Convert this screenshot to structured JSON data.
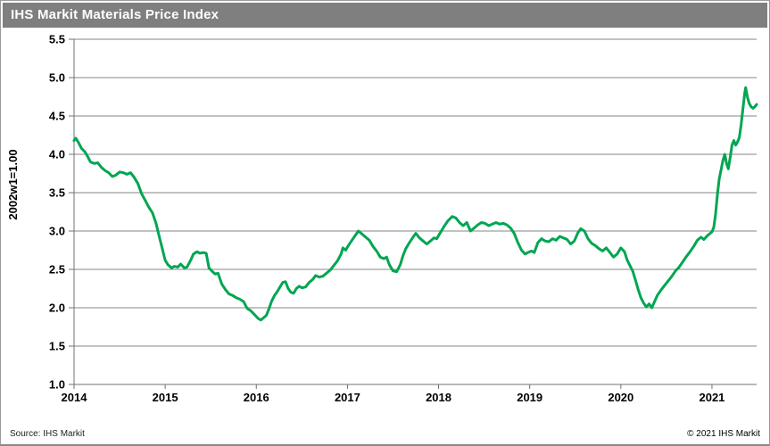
{
  "header": {
    "title": "IHS Markit Materials Price Index"
  },
  "footer": {
    "source": "Source: IHS Markit",
    "copyright": "© 2021  IHS Markit"
  },
  "colors": {
    "header_bg": "#7f7f7f",
    "line": "#00a651",
    "grid": "#858585",
    "axis": "#707070",
    "tick_text": "#000000"
  },
  "chart_data": {
    "type": "line",
    "title": "IHS Markit Materials Price Index",
    "xlabel": "",
    "ylabel": "2002w1=1.00",
    "ylim": [
      1.0,
      5.5
    ],
    "ytick_step": 0.5,
    "xlim": [
      2014,
      2021.49
    ],
    "xticks": [
      2014,
      2015,
      2016,
      2017,
      2018,
      2019,
      2020,
      2021
    ],
    "grid": "horizontal",
    "legend": "none",
    "series": [
      {
        "name": "Materials Price Index",
        "points": [
          [
            2014.0,
            4.18
          ],
          [
            2014.02,
            4.21
          ],
          [
            2014.05,
            4.15
          ],
          [
            2014.08,
            4.08
          ],
          [
            2014.12,
            4.03
          ],
          [
            2014.15,
            3.97
          ],
          [
            2014.18,
            3.9
          ],
          [
            2014.22,
            3.88
          ],
          [
            2014.26,
            3.89
          ],
          [
            2014.3,
            3.83
          ],
          [
            2014.34,
            3.79
          ],
          [
            2014.38,
            3.76
          ],
          [
            2014.42,
            3.71
          ],
          [
            2014.46,
            3.73
          ],
          [
            2014.5,
            3.77
          ],
          [
            2014.54,
            3.76
          ],
          [
            2014.58,
            3.74
          ],
          [
            2014.62,
            3.76
          ],
          [
            2014.66,
            3.7
          ],
          [
            2014.7,
            3.62
          ],
          [
            2014.74,
            3.49
          ],
          [
            2014.78,
            3.4
          ],
          [
            2014.82,
            3.31
          ],
          [
            2014.86,
            3.24
          ],
          [
            2014.9,
            3.1
          ],
          [
            2014.93,
            2.95
          ],
          [
            2014.97,
            2.76
          ],
          [
            2015.0,
            2.62
          ],
          [
            2015.03,
            2.56
          ],
          [
            2015.07,
            2.52
          ],
          [
            2015.1,
            2.54
          ],
          [
            2015.14,
            2.53
          ],
          [
            2015.17,
            2.57
          ],
          [
            2015.21,
            2.52
          ],
          [
            2015.24,
            2.53
          ],
          [
            2015.28,
            2.62
          ],
          [
            2015.31,
            2.7
          ],
          [
            2015.35,
            2.73
          ],
          [
            2015.38,
            2.71
          ],
          [
            2015.42,
            2.72
          ],
          [
            2015.45,
            2.71
          ],
          [
            2015.48,
            2.52
          ],
          [
            2015.52,
            2.47
          ],
          [
            2015.55,
            2.44
          ],
          [
            2015.58,
            2.45
          ],
          [
            2015.62,
            2.31
          ],
          [
            2015.66,
            2.24
          ],
          [
            2015.7,
            2.18
          ],
          [
            2015.74,
            2.16
          ],
          [
            2015.78,
            2.13
          ],
          [
            2015.82,
            2.11
          ],
          [
            2015.86,
            2.08
          ],
          [
            2015.9,
            1.99
          ],
          [
            2015.94,
            1.96
          ],
          [
            2015.98,
            1.91
          ],
          [
            2016.02,
            1.86
          ],
          [
            2016.05,
            1.84
          ],
          [
            2016.08,
            1.87
          ],
          [
            2016.11,
            1.9
          ],
          [
            2016.14,
            1.99
          ],
          [
            2016.17,
            2.09
          ],
          [
            2016.2,
            2.16
          ],
          [
            2016.23,
            2.21
          ],
          [
            2016.26,
            2.27
          ],
          [
            2016.29,
            2.33
          ],
          [
            2016.32,
            2.34
          ],
          [
            2016.35,
            2.25
          ],
          [
            2016.38,
            2.2
          ],
          [
            2016.41,
            2.19
          ],
          [
            2016.44,
            2.25
          ],
          [
            2016.47,
            2.28
          ],
          [
            2016.5,
            2.26
          ],
          [
            2016.54,
            2.27
          ],
          [
            2016.58,
            2.33
          ],
          [
            2016.62,
            2.37
          ],
          [
            2016.65,
            2.42
          ],
          [
            2016.69,
            2.4
          ],
          [
            2016.73,
            2.41
          ],
          [
            2016.77,
            2.45
          ],
          [
            2016.81,
            2.49
          ],
          [
            2016.85,
            2.55
          ],
          [
            2016.89,
            2.61
          ],
          [
            2016.93,
            2.7
          ],
          [
            2016.95,
            2.78
          ],
          [
            2016.98,
            2.75
          ],
          [
            2017.01,
            2.81
          ],
          [
            2017.05,
            2.88
          ],
          [
            2017.09,
            2.95
          ],
          [
            2017.12,
            3.0
          ],
          [
            2017.16,
            2.96
          ],
          [
            2017.2,
            2.92
          ],
          [
            2017.24,
            2.88
          ],
          [
            2017.28,
            2.8
          ],
          [
            2017.32,
            2.74
          ],
          [
            2017.36,
            2.66
          ],
          [
            2017.4,
            2.64
          ],
          [
            2017.43,
            2.66
          ],
          [
            2017.46,
            2.56
          ],
          [
            2017.5,
            2.48
          ],
          [
            2017.54,
            2.47
          ],
          [
            2017.58,
            2.56
          ],
          [
            2017.61,
            2.68
          ],
          [
            2017.64,
            2.77
          ],
          [
            2017.68,
            2.85
          ],
          [
            2017.72,
            2.92
          ],
          [
            2017.75,
            2.97
          ],
          [
            2017.79,
            2.91
          ],
          [
            2017.83,
            2.87
          ],
          [
            2017.87,
            2.83
          ],
          [
            2017.91,
            2.87
          ],
          [
            2017.95,
            2.91
          ],
          [
            2017.98,
            2.9
          ],
          [
            2018.02,
            2.98
          ],
          [
            2018.06,
            3.06
          ],
          [
            2018.1,
            3.13
          ],
          [
            2018.15,
            3.19
          ],
          [
            2018.19,
            3.17
          ],
          [
            2018.23,
            3.11
          ],
          [
            2018.27,
            3.07
          ],
          [
            2018.31,
            3.11
          ],
          [
            2018.35,
            3.0
          ],
          [
            2018.39,
            3.04
          ],
          [
            2018.43,
            3.08
          ],
          [
            2018.47,
            3.11
          ],
          [
            2018.51,
            3.1
          ],
          [
            2018.55,
            3.07
          ],
          [
            2018.59,
            3.09
          ],
          [
            2018.63,
            3.11
          ],
          [
            2018.67,
            3.09
          ],
          [
            2018.71,
            3.1
          ],
          [
            2018.75,
            3.08
          ],
          [
            2018.79,
            3.04
          ],
          [
            2018.83,
            2.97
          ],
          [
            2018.87,
            2.85
          ],
          [
            2018.91,
            2.75
          ],
          [
            2018.95,
            2.7
          ],
          [
            2018.98,
            2.72
          ],
          [
            2019.02,
            2.74
          ],
          [
            2019.05,
            2.72
          ],
          [
            2019.09,
            2.85
          ],
          [
            2019.13,
            2.9
          ],
          [
            2019.17,
            2.87
          ],
          [
            2019.21,
            2.86
          ],
          [
            2019.25,
            2.9
          ],
          [
            2019.29,
            2.88
          ],
          [
            2019.33,
            2.93
          ],
          [
            2019.37,
            2.91
          ],
          [
            2019.41,
            2.89
          ],
          [
            2019.45,
            2.83
          ],
          [
            2019.49,
            2.87
          ],
          [
            2019.53,
            2.98
          ],
          [
            2019.56,
            3.03
          ],
          [
            2019.6,
            3.0
          ],
          [
            2019.64,
            2.9
          ],
          [
            2019.68,
            2.84
          ],
          [
            2019.72,
            2.81
          ],
          [
            2019.76,
            2.77
          ],
          [
            2019.8,
            2.74
          ],
          [
            2019.84,
            2.78
          ],
          [
            2019.88,
            2.72
          ],
          [
            2019.92,
            2.66
          ],
          [
            2019.96,
            2.7
          ],
          [
            2020.0,
            2.78
          ],
          [
            2020.04,
            2.73
          ],
          [
            2020.07,
            2.62
          ],
          [
            2020.1,
            2.55
          ],
          [
            2020.13,
            2.48
          ],
          [
            2020.16,
            2.36
          ],
          [
            2020.19,
            2.24
          ],
          [
            2020.22,
            2.13
          ],
          [
            2020.25,
            2.06
          ],
          [
            2020.28,
            2.01
          ],
          [
            2020.31,
            2.05
          ],
          [
            2020.34,
            2.0
          ],
          [
            2020.37,
            2.08
          ],
          [
            2020.4,
            2.16
          ],
          [
            2020.44,
            2.23
          ],
          [
            2020.48,
            2.29
          ],
          [
            2020.52,
            2.35
          ],
          [
            2020.56,
            2.41
          ],
          [
            2020.6,
            2.48
          ],
          [
            2020.64,
            2.53
          ],
          [
            2020.68,
            2.6
          ],
          [
            2020.72,
            2.67
          ],
          [
            2020.76,
            2.73
          ],
          [
            2020.8,
            2.8
          ],
          [
            2020.84,
            2.88
          ],
          [
            2020.88,
            2.92
          ],
          [
            2020.91,
            2.89
          ],
          [
            2020.95,
            2.94
          ],
          [
            2020.98,
            2.97
          ],
          [
            2021.0,
            2.99
          ],
          [
            2021.02,
            3.05
          ],
          [
            2021.04,
            3.22
          ],
          [
            2021.06,
            3.48
          ],
          [
            2021.08,
            3.68
          ],
          [
            2021.1,
            3.8
          ],
          [
            2021.12,
            3.92
          ],
          [
            2021.14,
            4.0
          ],
          [
            2021.16,
            3.88
          ],
          [
            2021.18,
            3.81
          ],
          [
            2021.2,
            3.96
          ],
          [
            2021.22,
            4.12
          ],
          [
            2021.24,
            4.18
          ],
          [
            2021.26,
            4.12
          ],
          [
            2021.28,
            4.16
          ],
          [
            2021.3,
            4.22
          ],
          [
            2021.32,
            4.38
          ],
          [
            2021.34,
            4.6
          ],
          [
            2021.36,
            4.8
          ],
          [
            2021.37,
            4.87
          ],
          [
            2021.39,
            4.74
          ],
          [
            2021.41,
            4.66
          ],
          [
            2021.43,
            4.62
          ],
          [
            2021.45,
            4.6
          ],
          [
            2021.47,
            4.62
          ],
          [
            2021.49,
            4.65
          ]
        ]
      }
    ]
  }
}
